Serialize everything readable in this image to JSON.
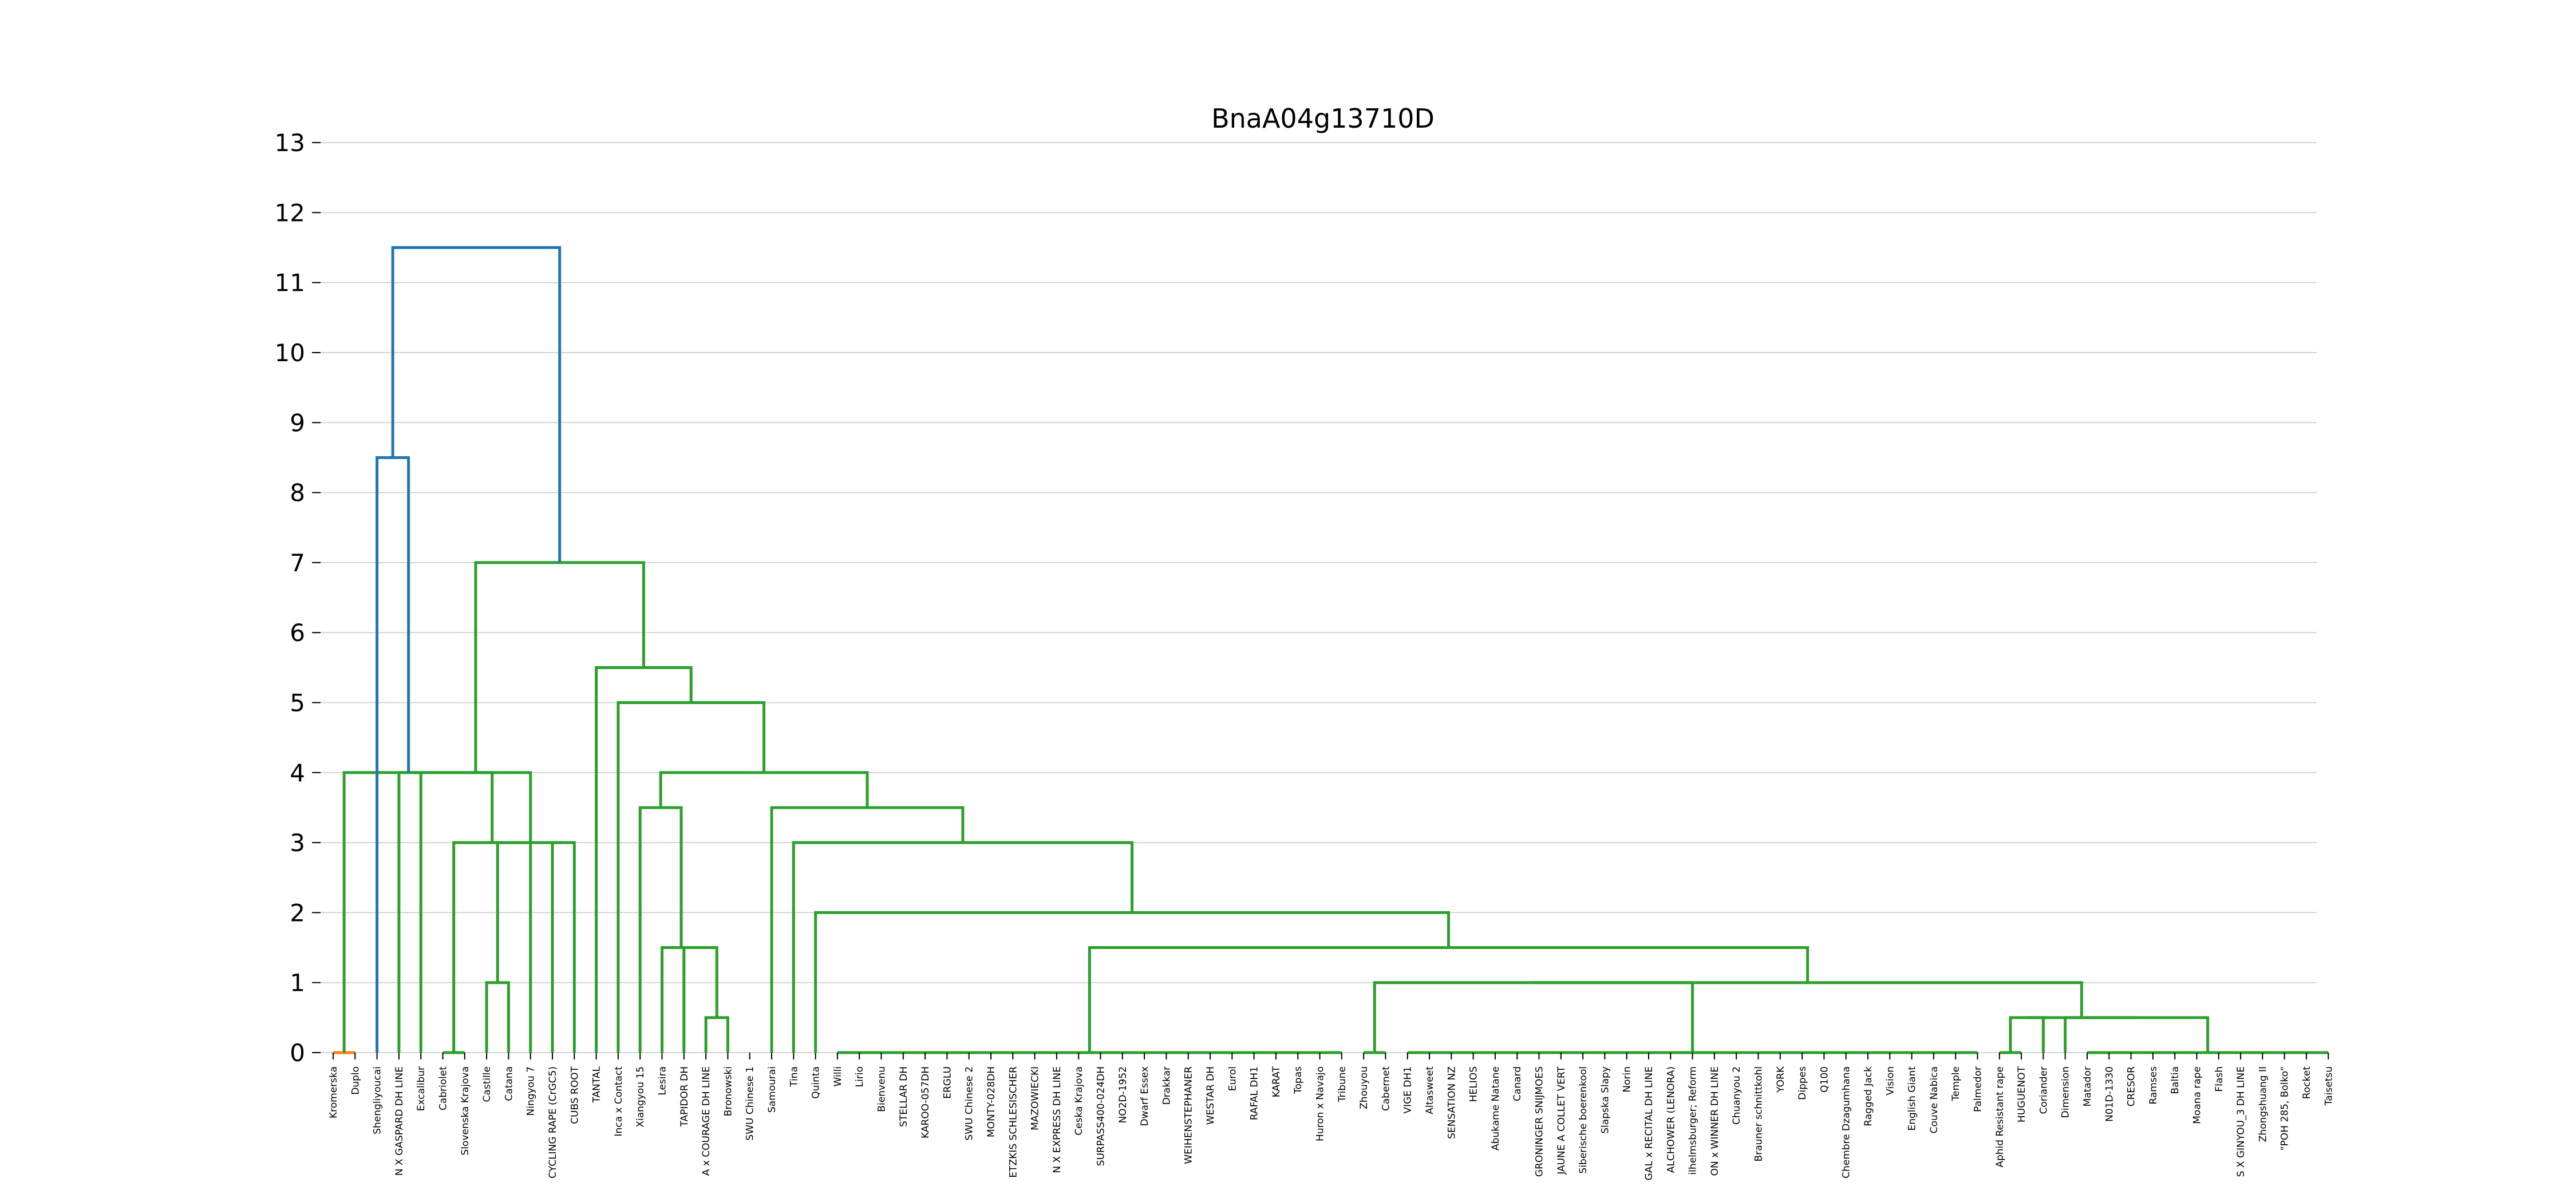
{
  "chart_data": {
    "type": "dendrogram",
    "title": "BnaA04g13710D",
    "xlabel": "",
    "ylabel": "",
    "ylim": [
      0,
      13
    ],
    "yticks": [
      0,
      1,
      2,
      3,
      4,
      5,
      6,
      7,
      8,
      9,
      10,
      11,
      12,
      13
    ],
    "grid": "horizontal",
    "colors": {
      "top": "#1f77b4",
      "cluster": "#2ca02c",
      "orange": "#ff7f0e",
      "grid": "#d3d3d3"
    },
    "leaves": [
      "Kromerska",
      "Duplo",
      "Shengliyoucai",
      "N X GASPARD DH LINE",
      "Excalibur",
      "Cabriolet",
      "Slovenska Krajova",
      "Castille",
      "Catana",
      "Ningyou 7",
      "CYCLING RAPE (CrGC5)",
      "CUBS ROOT",
      "TANTAL",
      "Inca x Contact",
      "Xiangyou 15",
      "Lesira",
      "TAPIDOR DH",
      "A x COURAGE DH LINE",
      "Bronowski",
      "SWU Chinese 1",
      "Samourai",
      "Tina",
      "Quinta",
      "Willi",
      "Lirio",
      "Bienvenu",
      "STELLAR DH",
      "KAROO-057DH",
      "ERGLU",
      "SWU Chinese 2",
      "MONTY-028DH",
      "ETZKIS SCHLESISCHER",
      "MAZOWIECKI",
      "N X EXPRESS DH LINE",
      "Ceska Krajova",
      "SURPASS400-024DH",
      "NO2D-1952",
      "Dwarf Essex",
      "Drakkar",
      "WEIHENSTEPHANER",
      "WESTAR DH",
      "Eurol",
      "RAFAL DH1",
      "KARAT",
      "Topas",
      "Huron x Navajo",
      "Tribune",
      "Zhouyou",
      "Cabernet",
      "VIGE DH1",
      "Altasweet",
      "SENSATION NZ",
      "HELIOS",
      "Abukame Natane",
      "Canard",
      "GRONINGER SNIJMOES",
      "JAUNE A COLLET VERT",
      "Siberische boerenkool",
      "Slapska Slapy",
      "Norin",
      "GAL x RECITAL DH LINE",
      "ALCHOWER (LENORA)",
      "ilhelmsburger; Reform",
      "ON x WINNER DH LINE",
      "Chuanyou 2",
      "Brauner schnittkohl",
      "YORK",
      "Dippes",
      "Q100",
      "Chembre Dzagumhana",
      "Ragged Jack",
      "Vision",
      "English Giant",
      "Couve Nabica",
      "Temple",
      "Palmedor",
      "Aphid Resistant rape",
      "HUGUENOT",
      "Coriander",
      "Dimension",
      "Matador",
      "N01D-1330",
      "CRESOR",
      "Ramses",
      "Baltia",
      "Moana rape",
      "Flash",
      "S X GINYOU_3 DH LINE",
      "Zhongshuang II",
      "\"POH 285, Bolko\"",
      "Rocket",
      "Taisetsu"
    ],
    "merges": [
      {
        "color": "cluster",
        "left": "Castille",
        "right": "Catana",
        "height": 1.0
      },
      {
        "color": "cluster",
        "left": "A x COURAGE DH LINE",
        "right": "Bronowski",
        "height": 0.5
      },
      {
        "color": "cluster",
        "left": "TAPIDOR DH",
        "right": "c2",
        "height": 1.5
      },
      {
        "color": "cluster",
        "left": "Lesira",
        "right": "c3",
        "height": 1.5
      },
      {
        "color": "cluster",
        "left": "Xiangyou 15",
        "right": "c4",
        "height": 3.5
      },
      {
        "color": "cluster",
        "left": "Zhouyou",
        "right": "Cabernet",
        "height": 0.0
      },
      {
        "color": "cluster",
        "group": [
          "VIGE DH1",
          "Altasweet",
          "SENSATION NZ",
          "HELIOS",
          "Abukame Natane",
          "Canard",
          "GRONINGER SNIJMOES",
          "JAUNE A COLLET VERT",
          "Siberische boerenkool",
          "Slapska Slapy",
          "Norin",
          "GAL x RECITAL DH LINE",
          "ALCHOWER (LENORA)",
          "ilhelmsburger; Reform",
          "ON x WINNER DH LINE",
          "Chuanyou 2",
          "Brauner schnittkohl",
          "YORK",
          "Dippes",
          "Q100",
          "Chembre Dzagumhana",
          "Ragged Jack",
          "Vision",
          "English Giant",
          "Couve Nabica",
          "Temple",
          "Palmedor"
        ],
        "height": 0.0
      },
      {
        "color": "cluster",
        "left": "c6",
        "right": "c7",
        "height": 1.0
      },
      {
        "color": "cluster",
        "left": "Aphid Resistant rape",
        "right": "HUGUENOT",
        "height": 0.0
      },
      {
        "color": "cluster",
        "left": "c9",
        "right": "Coriander",
        "height": 0.5
      },
      {
        "color": "cluster",
        "group": [
          "Matador",
          "N01D-1330",
          "CRESOR",
          "Ramses",
          "Baltia",
          "Moana rape",
          "Flash",
          "S X GINYOU_3 DH LINE",
          "Zhongshuang II",
          "\"POH 285, Bolko\"",
          "Rocket",
          "Taisetsu"
        ],
        "height": 0.0
      },
      {
        "color": "cluster",
        "left": "Dimension",
        "right": "c11",
        "height": 0.5
      },
      {
        "color": "cluster",
        "left": "c10",
        "right": "c12",
        "height": 0.5
      },
      {
        "color": "cluster",
        "left": "c8",
        "right": "c13",
        "height": 1.0
      },
      {
        "color": "cluster",
        "group": [
          "Willi",
          "Lirio",
          "Bienvenu",
          "STELLAR DH",
          "KAROO-057DH",
          "ERGLU",
          "SWU Chinese 2",
          "MONTY-028DH",
          "ETZKIS SCHLESISCHER",
          "MAZOWIECKI",
          "N X EXPRESS DH LINE",
          "Ceska Krajova",
          "SURPASS400-024DH",
          "NO2D-1952",
          "Dwarf Essex",
          "Drakkar",
          "WEIHENSTEPHANER",
          "WESTAR DH",
          "Eurol",
          "RAFAL DH1",
          "KARAT",
          "Topas",
          "Huron x Navajo",
          "Tribune"
        ],
        "height": 0.0
      },
      {
        "color": "cluster",
        "left": "c15",
        "right": "c14",
        "height": 1.5
      },
      {
        "color": "cluster",
        "left": "Quinta",
        "right": "c16",
        "height": 2.0
      },
      {
        "color": "cluster",
        "left": "Tina",
        "right": "c17",
        "height": 3.0
      },
      {
        "color": "cluster",
        "left": "Samourai",
        "right": "c18",
        "height": 3.5
      },
      {
        "color": "cluster",
        "left": "c5",
        "right": "c19",
        "height": 4.0
      },
      {
        "color": "cluster",
        "left": "Inca x Contact",
        "right": "c20",
        "height": 5.0
      },
      {
        "color": "cluster",
        "left": "TANTAL",
        "right": "c21",
        "height": 5.5
      },
      {
        "color": "orange",
        "left": "Kromerska",
        "right": "Duplo",
        "height": 0.0
      },
      {
        "color": "cluster",
        "left": "Cabriolet",
        "right": "Slovenska Krajova",
        "height": 0.0
      },
      {
        "color": "cluster",
        "left": "CYCLING RAPE (CrGC5)",
        "right": "CUBS ROOT",
        "height": 3.0
      },
      {
        "color": "cluster",
        "left": "Ningyou 7",
        "right": "c24",
        "height": 3.0
      },
      {
        "color": "cluster",
        "left": "c1",
        "right": "c25",
        "height": 3.0
      },
      {
        "color": "cluster",
        "left": "c23",
        "right": "c26",
        "height": 4.0
      },
      {
        "color": "cluster",
        "left": "Excalibur",
        "right": "c27",
        "height": 4.0
      },
      {
        "color": "cluster",
        "left": "N X GASPARD DH LINE",
        "right": "c28",
        "height": 4.0
      },
      {
        "color": "cluster",
        "left": "c29",
        "right": "c22",
        "height": 7.0
      },
      {
        "color": "top",
        "left": "Shengliyoucai",
        "right": "c30",
        "height": 8.5
      },
      {
        "color": "top",
        "left": "c31",
        "right": "c32",
        "height": 11.5
      }
    ]
  }
}
